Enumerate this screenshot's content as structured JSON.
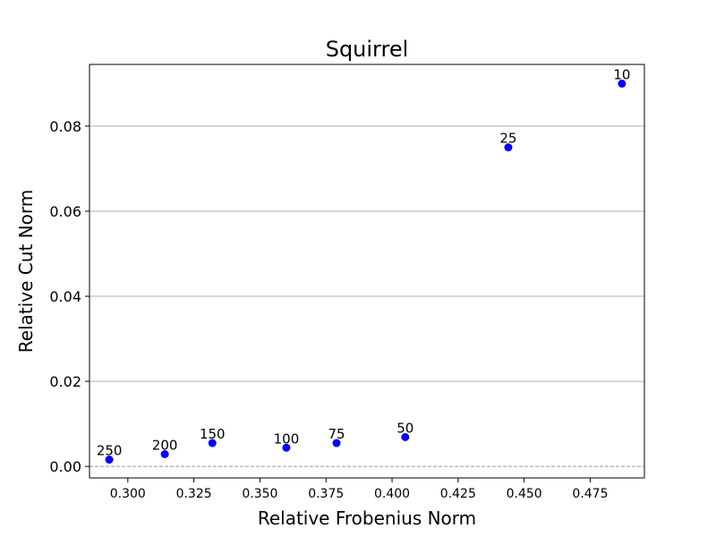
{
  "chart_data": {
    "type": "scatter",
    "title": "Squirrel",
    "xlabel": "Relative Frobenius Norm",
    "ylabel": "Relative Cut Norm",
    "xlim": [
      0.2855,
      0.4955
    ],
    "ylim": [
      -0.0027,
      0.0945
    ],
    "x_ticks": [
      "0.300",
      "0.325",
      "0.350",
      "0.375",
      "0.400",
      "0.425",
      "0.450",
      "0.475"
    ],
    "y_ticks": [
      "0.00",
      "0.02",
      "0.04",
      "0.06",
      "0.08"
    ],
    "grid": "horizontal",
    "reference_line": {
      "y": 0,
      "style": "dashed",
      "color": "#999999"
    },
    "point_color": "#0000ff",
    "points": [
      {
        "label": "10",
        "x": 0.487,
        "y": 0.09
      },
      {
        "label": "25",
        "x": 0.444,
        "y": 0.075
      },
      {
        "label": "50",
        "x": 0.405,
        "y": 0.0069
      },
      {
        "label": "75",
        "x": 0.379,
        "y": 0.0055
      },
      {
        "label": "100",
        "x": 0.36,
        "y": 0.0044
      },
      {
        "label": "150",
        "x": 0.332,
        "y": 0.0055
      },
      {
        "label": "200",
        "x": 0.314,
        "y": 0.0029
      },
      {
        "label": "250",
        "x": 0.293,
        "y": 0.0016
      }
    ]
  }
}
